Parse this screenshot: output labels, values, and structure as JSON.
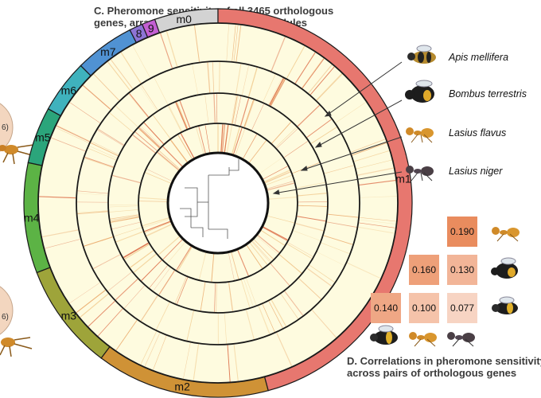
{
  "panel_c": {
    "title_line1": "C. Pheromone sensitivity of all 3465 orthologous",
    "title_line2": "genes, arranged into coexpressed modules"
  },
  "panel_d": {
    "title_line1": "D. Correlations in pheromone sensitivity",
    "title_line2": "across pairs of orthologous genes"
  },
  "species": [
    "Apis mellifera",
    "Bombus terrestris",
    "Lasius flavus",
    "Lasius niger"
  ],
  "modules": [
    {
      "label": "m0",
      "color": "#d3d3d3",
      "span_deg": 21
    },
    {
      "label": "m1",
      "color": "#e7776f",
      "span_deg": 165
    },
    {
      "label": "m2",
      "color": "#cf9236",
      "span_deg": 52
    },
    {
      "label": "m3",
      "color": "#9ea43a",
      "span_deg": 32
    },
    {
      "label": "m4",
      "color": "#5cb345",
      "span_deg": 33
    },
    {
      "label": "m5",
      "color": "#2ba57b",
      "span_deg": 17
    },
    {
      "label": "m6",
      "color": "#3fb2bd",
      "span_deg": 16
    },
    {
      "label": "m7",
      "color": "#5092d3",
      "span_deg": 18
    },
    {
      "label": "8",
      "color": "#8d74d5",
      "span_deg": 4
    },
    {
      "label": "9",
      "color": "#c35fd3",
      "span_deg": 4
    }
  ],
  "correlations": [
    {
      "value": "0.190",
      "color": "#e98c5e"
    },
    {
      "value": "0.160",
      "color": "#eea079"
    },
    {
      "value": "0.130",
      "color": "#f2b598"
    },
    {
      "value": "0.140",
      "color": "#efa785"
    },
    {
      "value": "0.100",
      "color": "#f5c3aa"
    },
    {
      "value": "0.077",
      "color": "#f7d4c3"
    }
  ]
}
